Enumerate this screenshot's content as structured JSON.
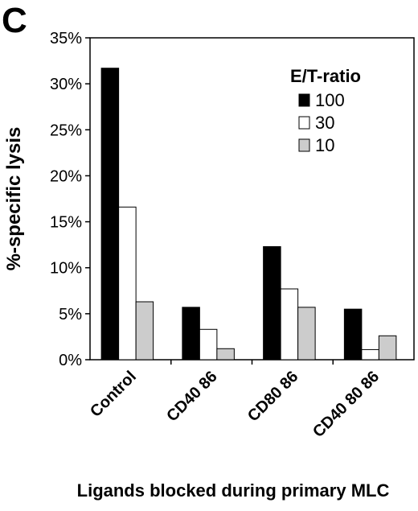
{
  "chart_data": {
    "type": "bar",
    "panel_label": "C",
    "categories": [
      "Control",
      "CD40 86",
      "CD80 86",
      "CD40 80 86"
    ],
    "series": [
      {
        "name": "100",
        "values": [
          31.7,
          5.7,
          12.3,
          5.5
        ],
        "color": "#000000"
      },
      {
        "name": "30",
        "values": [
          16.6,
          3.3,
          7.7,
          1.1
        ],
        "color": "#ffffff"
      },
      {
        "name": "10",
        "values": [
          6.3,
          1.2,
          5.7,
          2.6
        ],
        "color": "#cccccc"
      }
    ],
    "title": "",
    "xlabel": "Ligands blocked during primary MLC",
    "ylabel": "%-specific lysis",
    "ylim": [
      0,
      35
    ],
    "yticks": [
      "0%",
      "5%",
      "10%",
      "15%",
      "20%",
      "25%",
      "30%",
      "35%"
    ],
    "legend": {
      "title": "E/T-ratio",
      "placement": "top-right"
    },
    "grid": false
  }
}
